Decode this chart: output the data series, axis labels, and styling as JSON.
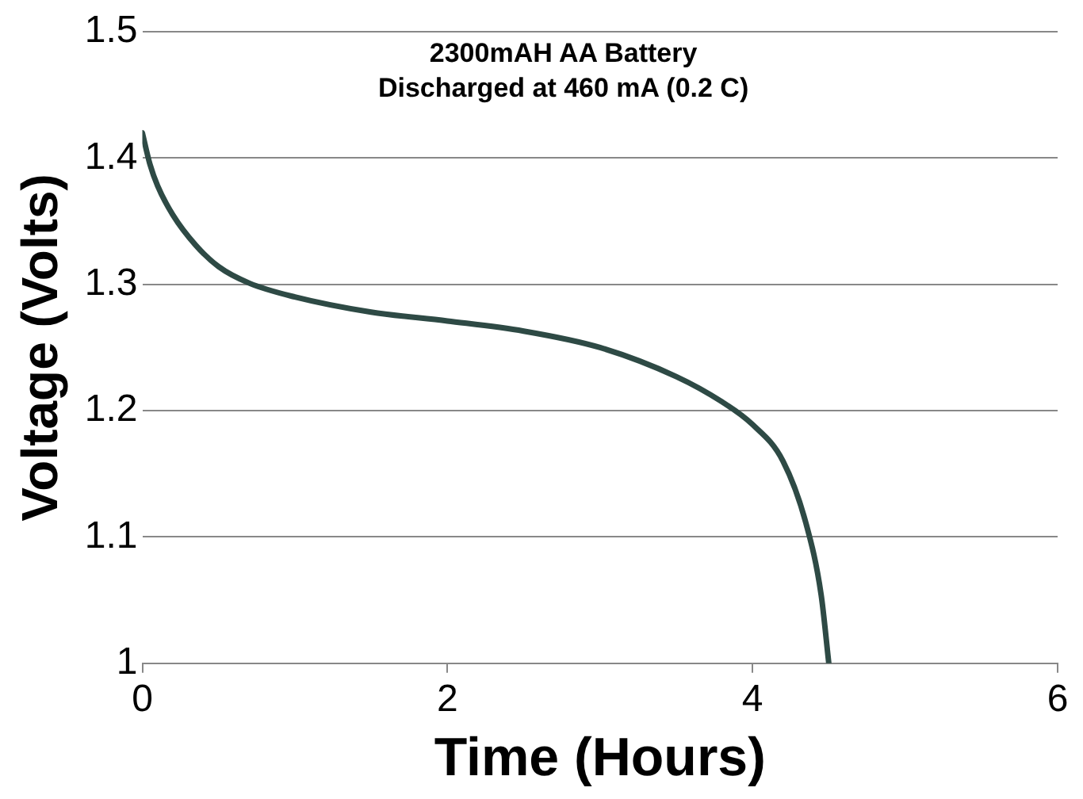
{
  "chart_data": {
    "type": "line",
    "title": "2300mAH AA Battery\nDischarged at 460 mA (0.2 C)",
    "xlabel": "Time (Hours)",
    "ylabel": "Voltage (Volts)",
    "xlim": [
      0,
      6
    ],
    "xticks": [
      0,
      2,
      4,
      6
    ],
    "ylim": [
      1,
      1.5
    ],
    "yticks": [
      1,
      1.1,
      1.2,
      1.3,
      1.4,
      1.5
    ],
    "grid": "y",
    "legend": false,
    "marker": "none",
    "line_style": "solid",
    "series": [
      {
        "color": "#2e4a45",
        "x": [
          0,
          0.05,
          0.1,
          0.2,
          0.35,
          0.5,
          0.7,
          1.0,
          1.5,
          2.0,
          2.5,
          3.0,
          3.5,
          3.8,
          4.0,
          4.2,
          4.35,
          4.45,
          4.5
        ],
        "values": [
          1.42,
          1.395,
          1.378,
          1.355,
          1.331,
          1.314,
          1.301,
          1.29,
          1.278,
          1.271,
          1.263,
          1.25,
          1.227,
          1.207,
          1.189,
          1.16,
          1.111,
          1.054,
          1.0
        ]
      }
    ]
  }
}
